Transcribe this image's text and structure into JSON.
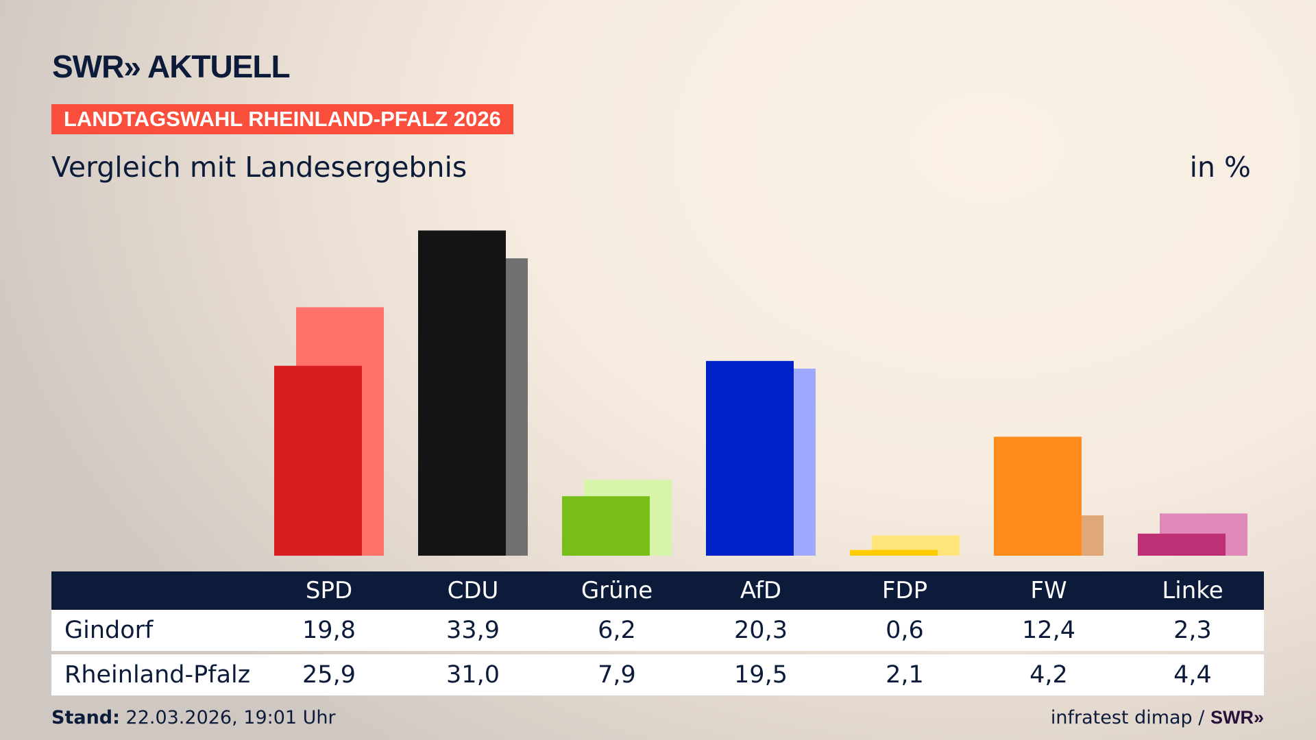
{
  "header": {
    "logo": "SWR» AKTUELL",
    "banner": "LANDTAGSWAHL RHEINLAND-PFALZ 2026",
    "subtitle": "Vergleich mit Landesergebnis",
    "unit": "in %"
  },
  "chart_data": {
    "type": "bar",
    "title": "Vergleich mit Landesergebnis",
    "ylabel": "in %",
    "categories": [
      "SPD",
      "CDU",
      "Grüne",
      "AfD",
      "FDP",
      "FW",
      "Linke"
    ],
    "series": [
      {
        "name": "Gindorf",
        "values": [
          19.8,
          33.9,
          6.2,
          20.3,
          0.6,
          12.4,
          2.3
        ],
        "display": [
          "19,8",
          "33,9",
          "6,2",
          "20,3",
          "0,6",
          "12,4",
          "2,3"
        ]
      },
      {
        "name": "Rheinland-Pfalz",
        "values": [
          25.9,
          31.0,
          7.9,
          19.5,
          2.1,
          4.2,
          4.4
        ],
        "display": [
          "25,9",
          "31,0",
          "7,9",
          "19,5",
          "2,1",
          "4,2",
          "4,4"
        ]
      }
    ],
    "colors": {
      "primary": [
        "#d81f1f",
        "#141414",
        "#78be1b",
        "#0020c8",
        "#ffcc00",
        "#ff8c1a",
        "#be3075"
      ],
      "secondary": [
        "#ff7169",
        "#707070",
        "#d6f5a8",
        "#9eaaff",
        "#ffe57a",
        "#e0a878",
        "#e088b8"
      ]
    },
    "ylim": [
      0,
      35
    ],
    "grid": false
  },
  "footer": {
    "stand_label": "Stand:",
    "stand_value": "22.03.2026, 19:01 Uhr",
    "source": "infratest dimap /",
    "source_logo": "SWR»"
  }
}
